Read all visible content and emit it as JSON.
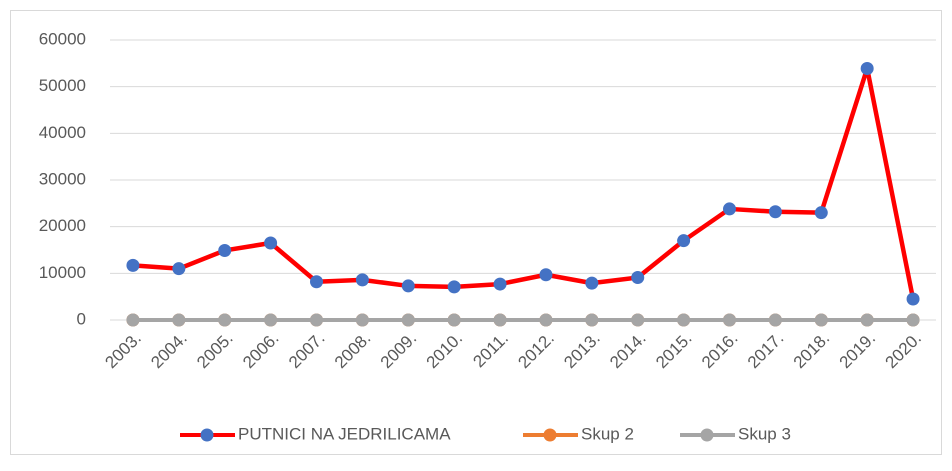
{
  "chart_data": {
    "type": "line",
    "categories": [
      "2003.",
      "2004.",
      "2005.",
      "2006.",
      "2007.",
      "2008.",
      "2009.",
      "2010.",
      "2011.",
      "2012.",
      "2013.",
      "2014.",
      "2015.",
      "2016.",
      "2017.",
      "2018.",
      "2019.",
      "2020."
    ],
    "series": [
      {
        "name": "PUTNICI NA JEDRILICAMA",
        "color": "#ff0000",
        "marker_color": "#4472c4",
        "values": [
          11700,
          11000,
          14900,
          16500,
          8200,
          8600,
          7300,
          7100,
          7700,
          9700,
          7900,
          9100,
          17000,
          23800,
          23200,
          23000,
          53900,
          4500
        ]
      },
      {
        "name": "Skup 2",
        "color": "#ed7d31",
        "marker_color": "#ed7d31",
        "values": [
          0,
          0,
          0,
          0,
          0,
          0,
          0,
          0,
          0,
          0,
          0,
          0,
          0,
          0,
          0,
          0,
          0,
          0
        ]
      },
      {
        "name": "Skup 3",
        "color": "#a5a5a5",
        "marker_color": "#a5a5a5",
        "values": [
          0,
          0,
          0,
          0,
          0,
          0,
          0,
          0,
          0,
          0,
          0,
          0,
          0,
          0,
          0,
          0,
          0,
          0
        ]
      }
    ],
    "ylim": [
      0,
      60000
    ],
    "yticks": [
      0,
      10000,
      20000,
      30000,
      40000,
      50000,
      60000
    ],
    "grid": true,
    "legend": "bottom"
  }
}
